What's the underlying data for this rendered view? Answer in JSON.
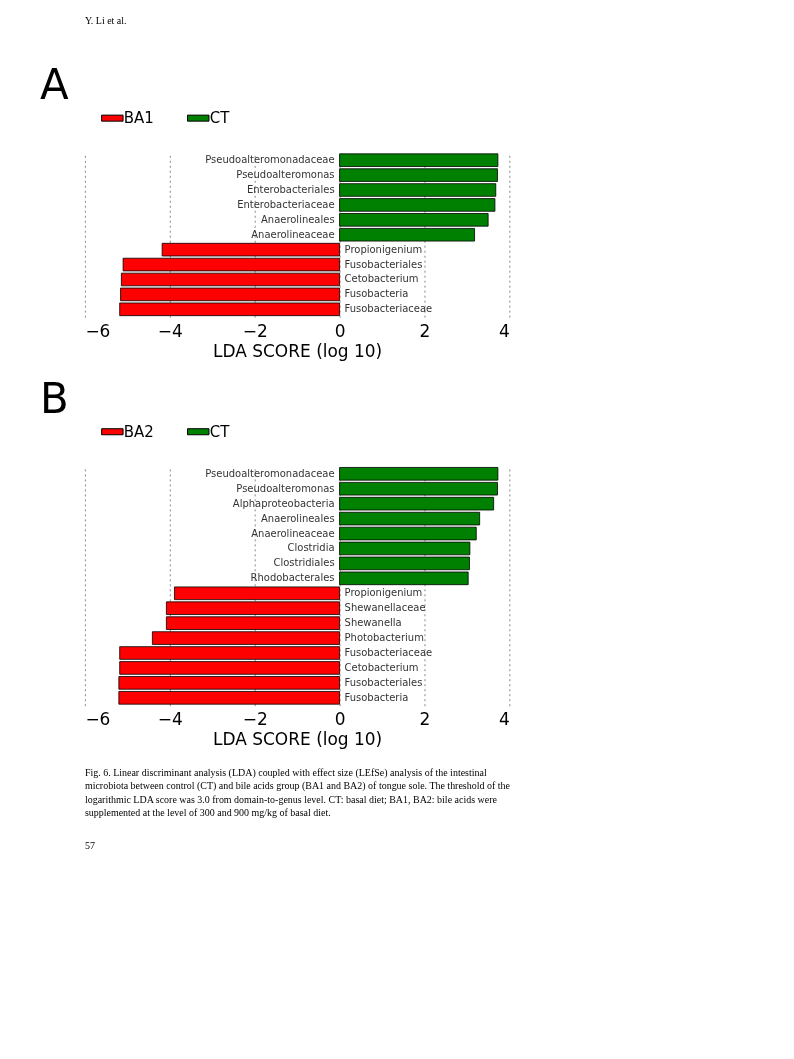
{
  "chart_data": [
    {
      "type": "bar",
      "orientation": "horizontal",
      "title": "A",
      "xlabel": "LDA SCORE (log 10)",
      "categories": [
        "Pseudoalteromonadaceae",
        "Pseudoalteromonas",
        "Enterobacteriales",
        "Enterobacteriaceae",
        "Anaerolineales",
        "Anaerolineaceae",
        "Propionigenium",
        "Fusobacteriales",
        "Cetobacterium",
        "Fusobacteria",
        "Fusobacteriaceae"
      ],
      "series": [
        {
          "name": "BA1",
          "color": "#ff0000",
          "values": [
            null,
            null,
            null,
            null,
            null,
            null,
            -4.18,
            -5.1,
            -5.14,
            -5.16,
            -5.18
          ]
        },
        {
          "name": "CT",
          "color": "#008000",
          "values": [
            3.73,
            3.72,
            3.68,
            3.66,
            3.5,
            3.18,
            null,
            null,
            null,
            null,
            null
          ]
        }
      ],
      "xlim": [
        -6,
        4
      ],
      "xticks": [
        {
          "value": -6,
          "label": "−6"
        },
        {
          "value": -4,
          "label": "−4"
        },
        {
          "value": -2,
          "label": "−2"
        },
        0,
        2,
        4
      ],
      "grid": "x",
      "legend": "top left",
      "annotations": [
        "Y. Li et al."
      ]
    },
    {
      "type": "bar",
      "orientation": "horizontal",
      "title": "B",
      "xlabel": "LDA SCORE (log 10)",
      "categories": [
        "Pseudoalteromonadaceae",
        "Pseudoalteromonas",
        "Alphaproteobacteria",
        "Anaerolineales",
        "Anaerolineaceae",
        "Clostridia",
        "Clostridiales",
        "Rhodobacterales",
        "Propionigenium",
        "Shewanellaceae",
        "Shewanella",
        "Photobacterium",
        "Fusobacteriaceae",
        "Cetobacterium",
        "Fusobacteriales",
        "Fusobacteria"
      ],
      "series": [
        {
          "name": "BA2",
          "color": "#ff0000",
          "values": [
            null,
            null,
            null,
            null,
            null,
            null,
            null,
            null,
            -3.89,
            -4.08,
            -4.08,
            -4.41,
            -5.18,
            -5.18,
            -5.2,
            -5.2
          ]
        },
        {
          "name": "CT",
          "color": "#008000",
          "values": [
            3.73,
            3.72,
            3.63,
            3.3,
            3.22,
            3.07,
            3.06,
            3.03,
            null,
            null,
            null,
            null,
            null,
            null,
            null,
            null
          ]
        }
      ],
      "xlim": [
        -6,
        4
      ],
      "xticks": [
        {
          "value": -6,
          "label": "−6"
        },
        {
          "value": -4,
          "label": "−4"
        },
        {
          "value": -2,
          "label": "−2"
        },
        0,
        2,
        4
      ],
      "grid": "x",
      "legend": "top left",
      "annotations": [
        "Fig. 6. Linear discriminant analysis (LDA) coupled with effect size (LEfSe) analysis of the intestinal microbiota between control (CT) and bile acids group (BA1 and BA2) of tongue sole. The threshold of the logarithmic LDA score was 3.0 from domain-to-genus level. CT: basal diet; BA1, BA2: bile acids were supplemented at the level of 300 and 900 mg/kg of basal diet.",
        "57"
      ]
    }
  ]
}
